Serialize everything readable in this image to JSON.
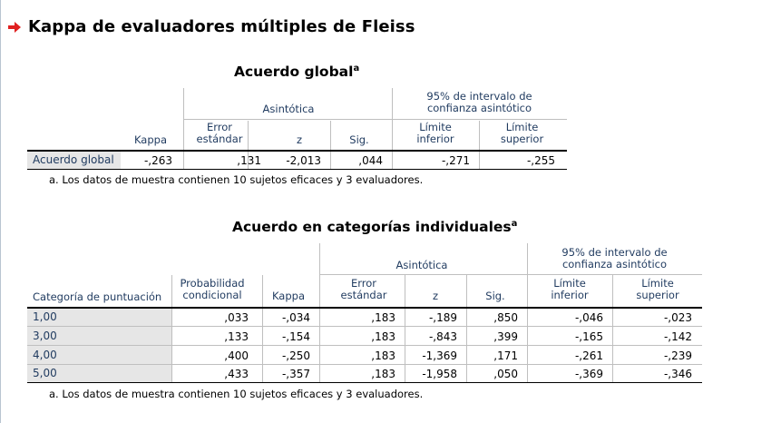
{
  "heading": "Kappa de evaluadores múltiples de Fleiss",
  "table1": {
    "title": "Acuerdo global",
    "title_sup": "a",
    "headers": {
      "kappa": "Kappa",
      "asintotica": "Asintótica",
      "error": [
        "Error",
        "estándar"
      ],
      "z": "z",
      "sig": "Sig.",
      "ci": [
        "95% de intervalo de",
        "confianza asintótico"
      ],
      "lower": [
        "Límite",
        "inferior"
      ],
      "upper": [
        "Límite",
        "superior"
      ]
    },
    "row": {
      "label": "Acuerdo global",
      "kappa": "-,263",
      "error": ",131",
      "z": "-2,013",
      "sig": ",044",
      "lower": "-,271",
      "upper": "-,255"
    },
    "footnote": "a. Los datos de muestra contienen 10 sujetos eficaces y 3 evaluadores."
  },
  "table2": {
    "title": "Acuerdo en categorías individuales",
    "title_sup": "a",
    "headers": {
      "category": "Categoría de puntuación",
      "prob": [
        "Probabilidad",
        "condicional"
      ],
      "kappa": "Kappa",
      "asintotica": "Asintótica",
      "error": [
        "Error",
        "estándar"
      ],
      "z": "z",
      "sig": "Sig.",
      "ci": [
        "95% de intervalo de",
        "confianza asintótico"
      ],
      "lower": [
        "Límite",
        "inferior"
      ],
      "upper": [
        "Límite",
        "superior"
      ]
    },
    "rows": [
      {
        "label": "1,00",
        "prob": ",033",
        "kappa": "-,034",
        "error": ",183",
        "z": "-,189",
        "sig": ",850",
        "lower": "-,046",
        "upper": "-,023"
      },
      {
        "label": "3,00",
        "prob": ",133",
        "kappa": "-,154",
        "error": ",183",
        "z": "-,843",
        "sig": ",399",
        "lower": "-,165",
        "upper": "-,142"
      },
      {
        "label": "4,00",
        "prob": ",400",
        "kappa": "-,250",
        "error": ",183",
        "z": "-1,369",
        "sig": ",171",
        "lower": "-,261",
        "upper": "-,239"
      },
      {
        "label": "5,00",
        "prob": ",433",
        "kappa": "-,357",
        "error": ",183",
        "z": "-1,958",
        "sig": ",050",
        "lower": "-,369",
        "upper": "-,346"
      }
    ],
    "footnote": "a. Los datos de muestra contienen 10 sujetos eficaces y 3 evaluadores."
  }
}
